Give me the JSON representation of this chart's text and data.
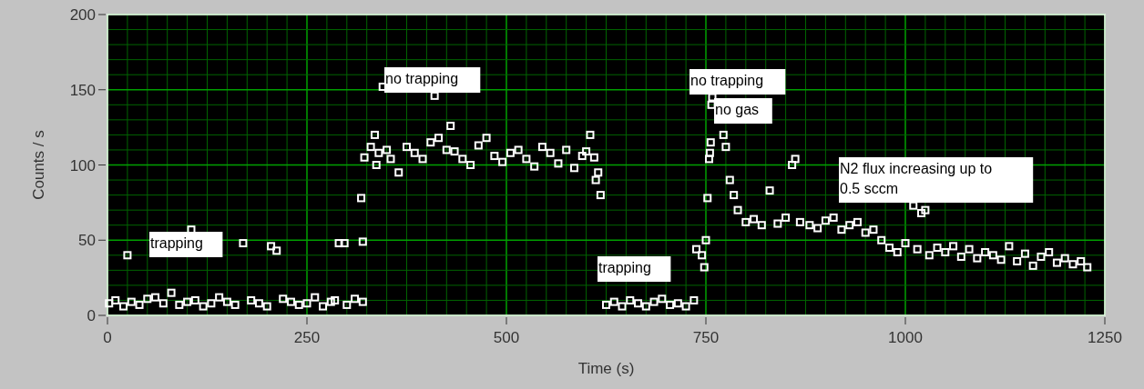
{
  "chart_data": {
    "type": "scatter",
    "xlabel": "Time (s)",
    "ylabel": "Counts / s",
    "xlim": [
      0,
      1250
    ],
    "xticks": [
      0,
      {
        "value": 25,
        "label": null
      },
      {
        "value": 50,
        "label": null
      },
      {
        "value": 75,
        "label": null
      },
      {
        "value": 100,
        "label": null
      },
      {
        "value": 125,
        "label": null
      },
      {
        "value": 150,
        "label": null
      },
      {
        "value": 175,
        "label": null
      },
      {
        "value": 200,
        "label": null
      },
      {
        "value": 225,
        "label": null
      },
      250,
      {
        "value": 275,
        "label": null
      },
      {
        "value": 300,
        "label": null
      },
      {
        "value": 325,
        "label": null
      },
      {
        "value": 350,
        "label": null
      },
      {
        "value": 375,
        "label": null
      },
      {
        "value": 400,
        "label": null
      },
      {
        "value": 425,
        "label": null
      },
      {
        "value": 450,
        "label": null
      },
      {
        "value": 475,
        "label": null
      },
      500,
      {
        "value": 525,
        "label": null
      },
      {
        "value": 550,
        "label": null
      },
      {
        "value": 575,
        "label": null
      },
      {
        "value": 600,
        "label": null
      },
      {
        "value": 625,
        "label": null
      },
      {
        "value": 650,
        "label": null
      },
      {
        "value": 675,
        "label": null
      },
      {
        "value": 700,
        "label": null
      },
      {
        "value": 725,
        "label": null
      },
      750,
      {
        "value": 775,
        "label": null
      },
      {
        "value": 800,
        "label": null
      },
      {
        "value": 825,
        "label": null
      },
      {
        "value": 850,
        "label": null
      },
      {
        "value": 875,
        "label": null
      },
      {
        "value": 900,
        "label": null
      },
      {
        "value": 925,
        "label": null
      },
      {
        "value": 950,
        "label": null
      },
      {
        "value": 975,
        "label": null
      },
      1000,
      {
        "value": 1025,
        "label": null
      },
      {
        "value": 1050,
        "label": null
      },
      {
        "value": 1075,
        "label": null
      },
      {
        "value": 1100,
        "label": null
      },
      {
        "value": 1125,
        "label": null
      },
      {
        "value": 1150,
        "label": null
      },
      {
        "value": 1175,
        "label": null
      },
      {
        "value": 1200,
        "label": null
      },
      {
        "value": 1225,
        "label": null
      },
      1250
    ],
    "ylim": [
      0,
      200
    ],
    "yticks": [
      0,
      {
        "value": 10,
        "label": null
      },
      {
        "value": 20,
        "label": null
      },
      {
        "value": 30,
        "label": null
      },
      {
        "value": 40,
        "label": null
      },
      50,
      {
        "value": 60,
        "label": null
      },
      {
        "value": 70,
        "label": null
      },
      {
        "value": 80,
        "label": null
      },
      {
        "value": 90,
        "label": null
      },
      100,
      {
        "value": 110,
        "label": null
      },
      {
        "value": 120,
        "label": null
      },
      {
        "value": 130,
        "label": null
      },
      {
        "value": 140,
        "label": null
      },
      150,
      {
        "value": 160,
        "label": null
      },
      {
        "value": 170,
        "label": null
      },
      {
        "value": 180,
        "label": null
      },
      {
        "value": 190,
        "label": null
      },
      200
    ],
    "grid": true,
    "marker": "square",
    "series": [
      {
        "color": "#ffffff",
        "x": [
          2,
          10,
          20,
          25,
          30,
          40,
          50,
          60,
          70,
          80,
          90,
          100,
          105,
          110,
          120,
          130,
          140,
          150,
          160,
          170,
          180,
          190,
          200,
          205,
          212,
          220,
          230,
          240,
          250,
          260,
          270,
          280,
          285,
          290,
          297,
          300,
          310,
          318,
          320,
          320,
          322,
          330,
          335,
          337,
          340,
          345,
          350,
          355,
          365,
          375,
          385,
          395,
          405,
          410,
          415,
          425,
          430,
          435,
          445,
          455,
          465,
          475,
          485,
          495,
          505,
          515,
          525,
          535,
          545,
          555,
          565,
          575,
          585,
          595,
          600,
          605,
          610,
          612,
          615,
          618,
          625,
          635,
          645,
          655,
          665,
          675,
          685,
          695,
          705,
          715,
          725,
          735,
          738,
          745,
          748,
          750,
          752,
          754,
          755,
          756,
          757,
          758,
          772,
          775,
          780,
          785,
          790,
          800,
          810,
          820,
          830,
          840,
          850,
          858,
          862,
          868,
          880,
          890,
          900,
          910,
          920,
          930,
          940,
          950,
          960,
          970,
          980,
          990,
          1000,
          1010,
          1015,
          1020,
          1025,
          1030,
          1040,
          1050,
          1060,
          1070,
          1080,
          1090,
          1100,
          1110,
          1120,
          1130,
          1140,
          1150,
          1160,
          1170,
          1180,
          1190,
          1200,
          1210,
          1220,
          1228
        ],
        "values": [
          8,
          10,
          6,
          40,
          9,
          7,
          11,
          12,
          8,
          15,
          7,
          9,
          57,
          10,
          6,
          8,
          12,
          9,
          7,
          48,
          10,
          8,
          6,
          46,
          43,
          11,
          9,
          7,
          8,
          12,
          6,
          9,
          10,
          48,
          48,
          7,
          11,
          78,
          49,
          9,
          105,
          112,
          120,
          100,
          108,
          152,
          110,
          104,
          95,
          112,
          108,
          104,
          115,
          146,
          118,
          110,
          126,
          109,
          104,
          100,
          113,
          118,
          106,
          102,
          108,
          110,
          104,
          99,
          112,
          108,
          101,
          110,
          98,
          106,
          109,
          120,
          105,
          90,
          95,
          80,
          7,
          9,
          6,
          10,
          8,
          6,
          9,
          11,
          7,
          8,
          6,
          10,
          44,
          40,
          32,
          50,
          78,
          104,
          108,
          115,
          140,
          145,
          120,
          112,
          90,
          80,
          70,
          62,
          64,
          60,
          83,
          61,
          65,
          100,
          104,
          62,
          60,
          58,
          63,
          65,
          57,
          60,
          62,
          55,
          57,
          50,
          45,
          42,
          48,
          73,
          44,
          68,
          70,
          40,
          45,
          42,
          46,
          39,
          44,
          38,
          42,
          40,
          37,
          46,
          36,
          41,
          33,
          39,
          42,
          35,
          38,
          34,
          36,
          32
        ]
      }
    ],
    "annotations": [
      "trapping",
      "no trapping",
      "trapping",
      "no trapping",
      "no gas",
      "N2 flux increasing up to\n0.5 sccm"
    ]
  }
}
